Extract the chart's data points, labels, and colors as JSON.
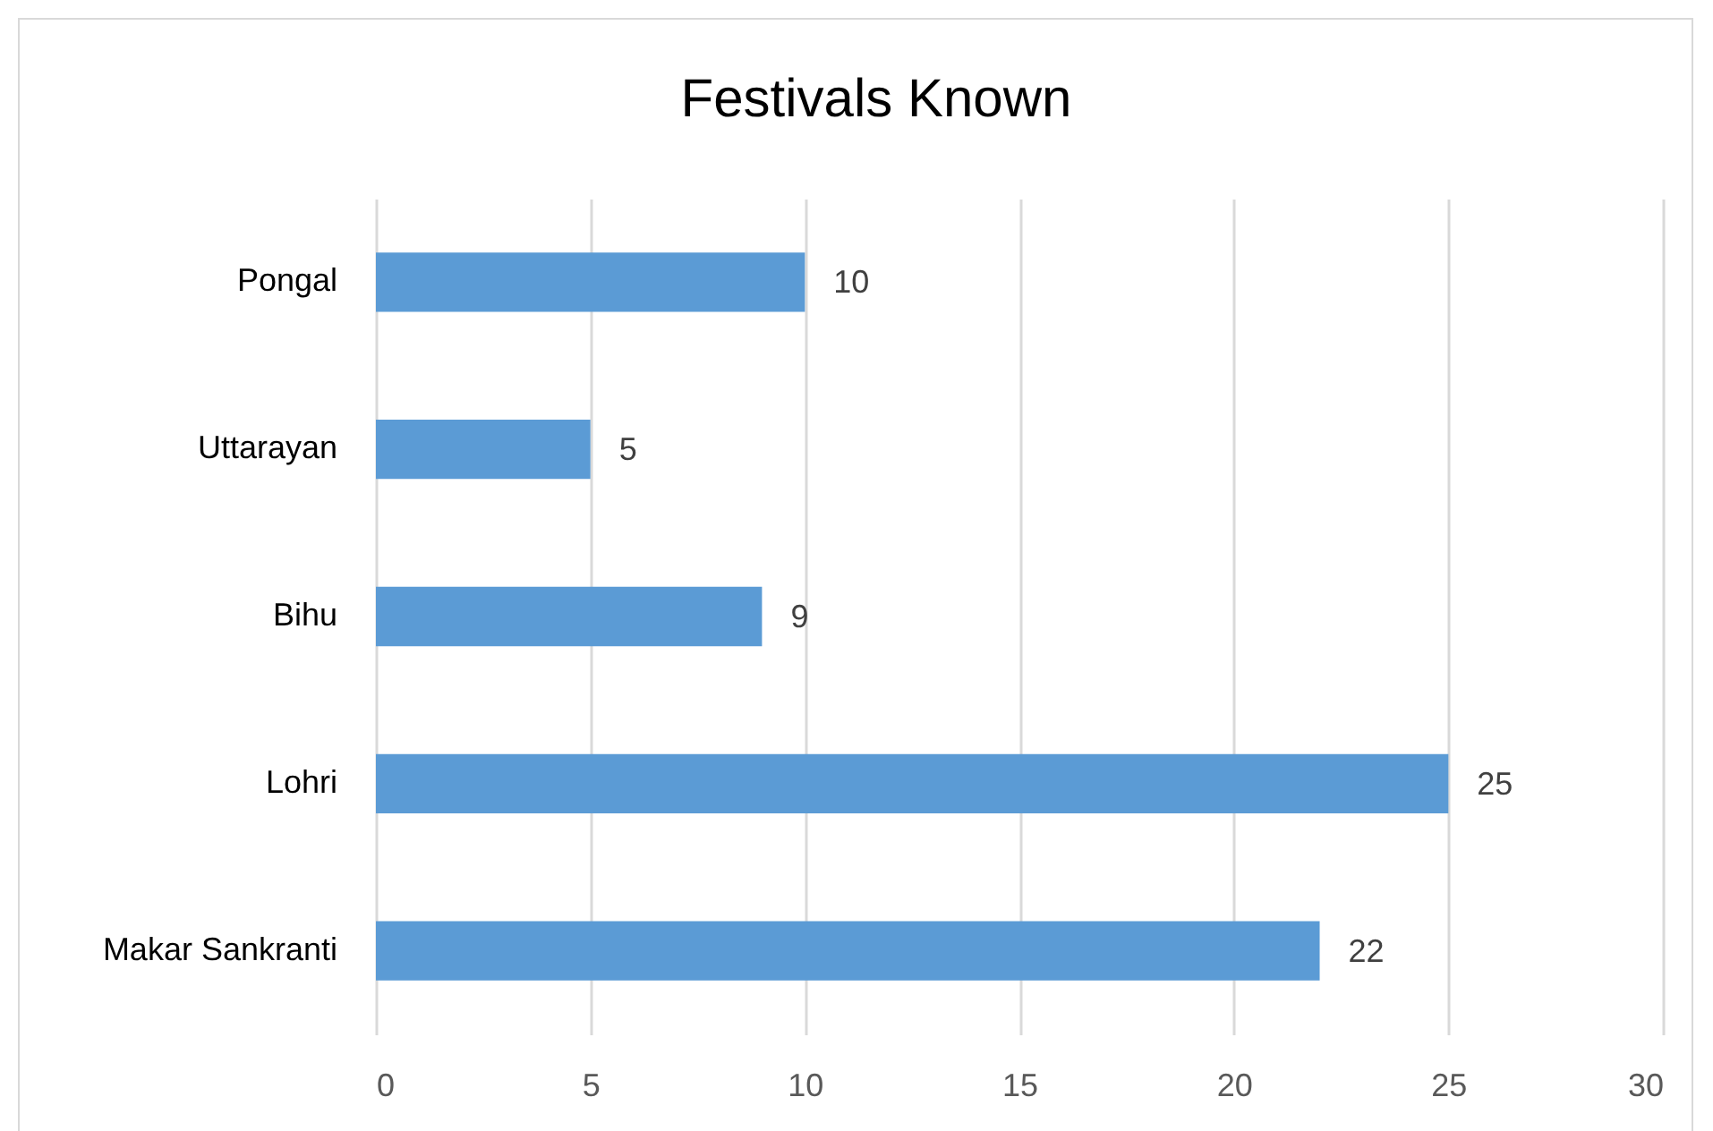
{
  "chart_data": {
    "type": "bar",
    "orientation": "horizontal",
    "title": "Festivals Known",
    "categories": [
      "Pongal",
      "Uttarayan",
      "Bihu",
      "Lohri",
      "Makar Sankranti"
    ],
    "values": [
      10,
      5,
      9,
      25,
      22
    ],
    "color": "#5b9bd5",
    "xlim": [
      0,
      30
    ],
    "xticks": [
      0,
      5,
      10,
      15,
      20,
      25,
      30
    ],
    "grid": "x",
    "data_labels": true
  }
}
